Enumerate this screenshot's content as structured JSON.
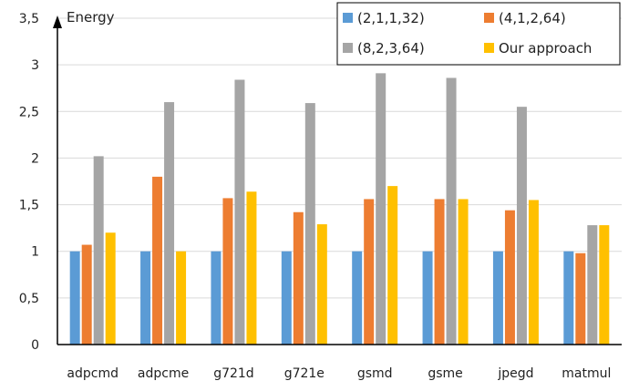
{
  "chart_data": {
    "type": "bar",
    "ylabel": "Energy",
    "ylim": [
      0,
      3.5
    ],
    "yticks": [
      "0",
      "0,5",
      "1",
      "1,5",
      "2",
      "2,5",
      "3",
      "3,5"
    ],
    "categories": [
      "adpcmd",
      "adpcme",
      "g721d",
      "g721e",
      "gsmd",
      "gsme",
      "jpegd",
      "matmul"
    ],
    "series": [
      {
        "name": "(2,1,1,32)",
        "color": "#5B9BD5",
        "values": [
          1.0,
          1.0,
          1.0,
          1.0,
          1.0,
          1.0,
          1.0,
          1.0
        ]
      },
      {
        "name": "(4,1,2,64)",
        "color": "#ED7D31",
        "values": [
          1.07,
          1.8,
          1.57,
          1.42,
          1.56,
          1.56,
          1.44,
          0.98
        ]
      },
      {
        "name": "(8,2,3,64)",
        "color": "#A5A5A5",
        "values": [
          2.02,
          2.6,
          2.84,
          2.59,
          2.91,
          2.86,
          2.55,
          1.28
        ]
      },
      {
        "name": "Our approach",
        "color": "#FFC000",
        "values": [
          1.2,
          1.0,
          1.64,
          1.29,
          1.7,
          1.56,
          1.55,
          1.28
        ]
      }
    ],
    "grid": true,
    "legend_position": "top-right"
  }
}
